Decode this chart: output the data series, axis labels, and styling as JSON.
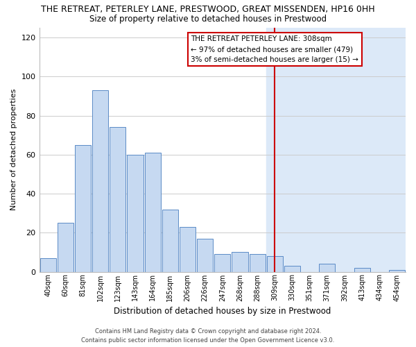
{
  "title": "THE RETREAT, PETERLEY LANE, PRESTWOOD, GREAT MISSENDEN, HP16 0HH",
  "subtitle": "Size of property relative to detached houses in Prestwood",
  "xlabel": "Distribution of detached houses by size in Prestwood",
  "ylabel": "Number of detached properties",
  "bar_labels": [
    "40sqm",
    "60sqm",
    "81sqm",
    "102sqm",
    "123sqm",
    "143sqm",
    "164sqm",
    "185sqm",
    "206sqm",
    "226sqm",
    "247sqm",
    "268sqm",
    "288sqm",
    "309sqm",
    "330sqm",
    "351sqm",
    "371sqm",
    "392sqm",
    "413sqm",
    "434sqm",
    "454sqm"
  ],
  "bar_heights": [
    7,
    25,
    65,
    93,
    74,
    60,
    61,
    32,
    23,
    17,
    9,
    10,
    9,
    8,
    3,
    0,
    4,
    0,
    2,
    0,
    1
  ],
  "bar_color": "#c6d9f1",
  "bar_edge_color": "#5a8ac6",
  "bar_color_right": "#dce9f8",
  "vline_x_index": 13,
  "vline_color": "#cc0000",
  "annotation_title": "THE RETREAT PETERLEY LANE: 308sqm",
  "annotation_line1": "← 97% of detached houses are smaller (479)",
  "annotation_line2": "3% of semi-detached houses are larger (15) →",
  "annotation_box_color": "#ffffff",
  "annotation_box_edge": "#cc0000",
  "ylim": [
    0,
    125
  ],
  "yticks": [
    0,
    20,
    40,
    60,
    80,
    100,
    120
  ],
  "footer_line1": "Contains HM Land Registry data © Crown copyright and database right 2024.",
  "footer_line2": "Contains public sector information licensed under the Open Government Licence v3.0.",
  "background_color": "#ffffff",
  "grid_color": "#cccccc",
  "right_shade_color": "#dce9f8"
}
